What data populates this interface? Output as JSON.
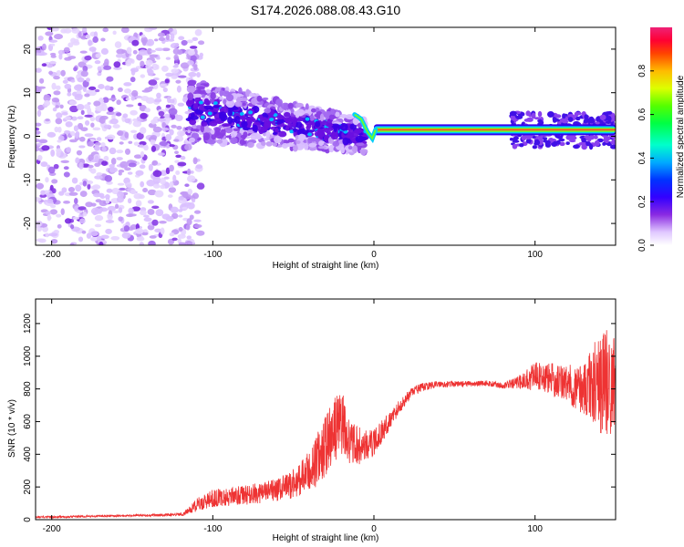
{
  "title": "S174.2026.088.08.43.G10",
  "chart_data": [
    {
      "type": "heatmap",
      "xlabel": "Height of straight line (km)",
      "ylabel": "Frequency (Hz)",
      "xlim": [
        -210,
        150
      ],
      "ylim": [
        -25,
        25
      ],
      "xticks": [
        -200,
        -100,
        0,
        100
      ],
      "yticks": [
        -20,
        -10,
        0,
        10,
        20
      ],
      "colorbar": {
        "label": "Normalized spectral amplitude",
        "range": [
          0,
          1
        ],
        "ticks": [
          "0.0",
          "0.2",
          "0.4",
          "0.6",
          "0.8"
        ]
      },
      "features": {
        "noise_region_x": [
          -210,
          -115
        ],
        "transition_region_x": [
          -115,
          -5
        ],
        "transition_center_freq_start": 6,
        "transition_center_freq_end": 0,
        "carrier_region_x": [
          0,
          150
        ],
        "carrier_frequency": 1.5
      }
    },
    {
      "type": "line",
      "xlabel": "Height of straight line (km)",
      "ylabel": "SNR (10 * v/v)",
      "xlim": [
        -210,
        150
      ],
      "ylim": [
        0,
        1350
      ],
      "xticks": [
        -200,
        -100,
        0,
        100
      ],
      "yticks": [
        0,
        200,
        400,
        600,
        800,
        1000,
        1200
      ],
      "color": "#ee3333",
      "series": [
        {
          "name": "SNR",
          "x": [
            -210,
            -180,
            -150,
            -130,
            -118,
            -110,
            -100,
            -80,
            -60,
            -50,
            -40,
            -35,
            -30,
            -25,
            -20,
            -15,
            -10,
            -5,
            0,
            5,
            10,
            15,
            20,
            25,
            30,
            40,
            50,
            60,
            70,
            80,
            90,
            100,
            110,
            120,
            130,
            140,
            150
          ],
          "y": [
            15,
            20,
            25,
            28,
            35,
            90,
            130,
            150,
            180,
            220,
            290,
            370,
            450,
            540,
            600,
            470,
            450,
            450,
            470,
            540,
            610,
            680,
            740,
            790,
            810,
            830,
            830,
            830,
            835,
            820,
            840,
            880,
            860,
            830,
            800,
            850,
            820
          ],
          "noise": [
            6,
            6,
            6,
            8,
            12,
            40,
            55,
            60,
            70,
            90,
            130,
            170,
            190,
            200,
            200,
            130,
            120,
            100,
            80,
            70,
            55,
            45,
            35,
            30,
            25,
            20,
            18,
            18,
            18,
            18,
            40,
            90,
            100,
            120,
            160,
            320,
            350
          ]
        }
      ]
    }
  ]
}
